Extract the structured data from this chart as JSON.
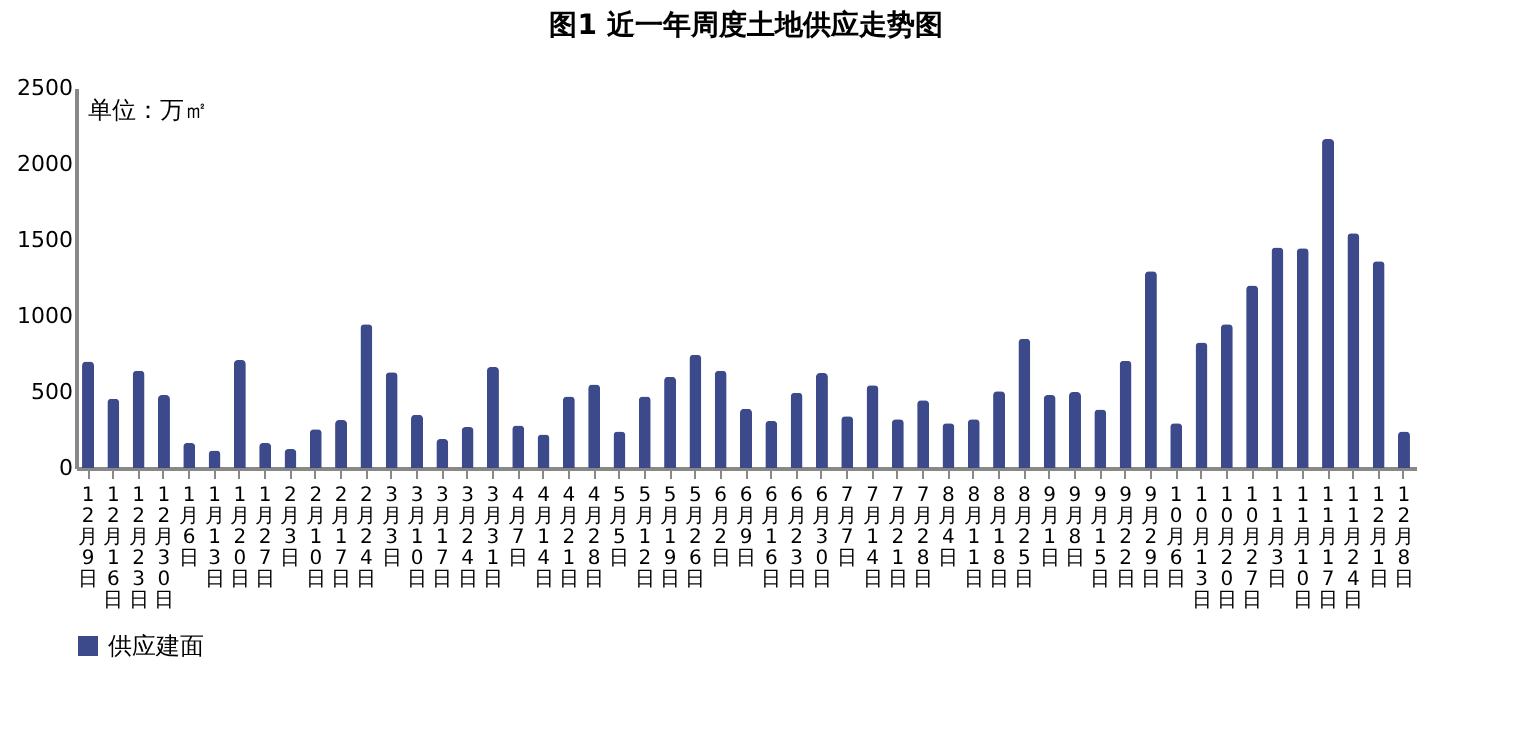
{
  "chart_data": {
    "type": "bar",
    "title": "图1  近一年周度土地供应走势图",
    "annotations": [
      "单位：万㎡"
    ],
    "categories": [
      "12月9日",
      "12月16日",
      "12月23日",
      "12月30日",
      "1月6日",
      "1月13日",
      "1月20日",
      "1月27日",
      "2月3日",
      "2月10日",
      "2月17日",
      "2月24日",
      "3月3日",
      "3月10日",
      "3月17日",
      "3月24日",
      "3月31日",
      "4月7日",
      "4月14日",
      "4月21日",
      "4月28日",
      "5月5日",
      "5月12日",
      "5月19日",
      "5月26日",
      "6月2日",
      "6月9日",
      "6月16日",
      "6月23日",
      "6月30日",
      "7月7日",
      "7月14日",
      "7月21日",
      "7月28日",
      "8月4日",
      "8月11日",
      "8月18日",
      "8月25日",
      "9月1日",
      "9月8日",
      "9月15日",
      "9月22日",
      "9月29日",
      "10月6日",
      "10月13日",
      "10月20日",
      "10月27日",
      "11月3日",
      "11月10日",
      "11月17日",
      "11月24日",
      "12月1日",
      "12月8日"
    ],
    "series": [
      {
        "name": "供应建面",
        "color": "#3c4a8c",
        "values": [
          700,
          455,
          640,
          480,
          165,
          115,
          710,
          165,
          125,
          255,
          315,
          945,
          630,
          350,
          190,
          270,
          665,
          280,
          220,
          470,
          550,
          240,
          470,
          600,
          745,
          640,
          390,
          310,
          495,
          625,
          340,
          545,
          320,
          445,
          295,
          320,
          505,
          850,
          480,
          500,
          385,
          705,
          1295,
          295,
          825,
          945,
          1200,
          1450,
          1445,
          2165,
          1545,
          1360,
          240
        ]
      }
    ],
    "ylim": [
      0,
      2500
    ],
    "yticks": [
      0,
      500,
      1000,
      1500,
      2000,
      2500
    ],
    "grid": false,
    "legend": "bottom"
  }
}
